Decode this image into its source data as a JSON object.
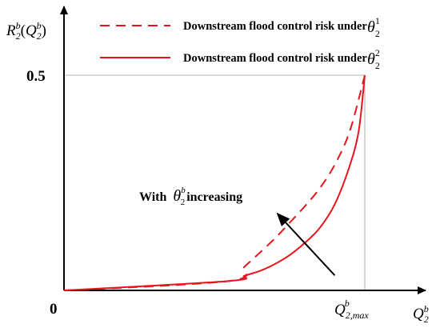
{
  "chart_data": {
    "type": "line",
    "y_axis_label": {
      "main": "R",
      "sub": "2",
      "sup": "b",
      "arg_main": "Q",
      "arg_sub": "2",
      "arg_sup": "b"
    },
    "x_axis_label": {
      "main": "Q",
      "sub": "2",
      "sup": "b"
    },
    "origin_label": "0",
    "y_tick_label": "0.5",
    "y_tick_value": 0.5,
    "x_max_label": {
      "main": "Q",
      "sub": "2,max",
      "sup": "b"
    },
    "x_max_value": 1.0,
    "xlim": [
      0,
      1.15
    ],
    "ylim": [
      0,
      0.57
    ],
    "series": [
      {
        "name": "Downstream flood control risk under",
        "theta_sup": "1",
        "theta_sub": "2",
        "style": "dashed",
        "color": "#e8141c",
        "x": [
          0,
          0.55,
          0.6,
          0.65,
          0.7,
          0.75,
          0.8,
          0.85,
          0.9,
          0.95,
          1.0
        ],
        "y": [
          0,
          0.022,
          0.055,
          0.087,
          0.12,
          0.157,
          0.195,
          0.237,
          0.292,
          0.37,
          0.5
        ]
      },
      {
        "name": "Downstream flood control risk under",
        "theta_sup": "2",
        "theta_sub": "2",
        "style": "solid",
        "color": "#e8141c",
        "x": [
          0,
          0.55,
          0.6,
          0.65,
          0.7,
          0.75,
          0.8,
          0.85,
          0.9,
          0.95,
          0.98,
          1.0
        ],
        "y": [
          0,
          0.022,
          0.034,
          0.045,
          0.061,
          0.082,
          0.11,
          0.145,
          0.2,
          0.29,
          0.372,
          0.5
        ]
      }
    ],
    "annotation": {
      "text_before": "With",
      "theta_sup": "b",
      "theta_sub": "2",
      "text_after": "increasing",
      "arrow_from": {
        "x": 0.9,
        "y": 0.035
      },
      "arrow_to": {
        "x": 0.71,
        "y": 0.178
      }
    }
  }
}
